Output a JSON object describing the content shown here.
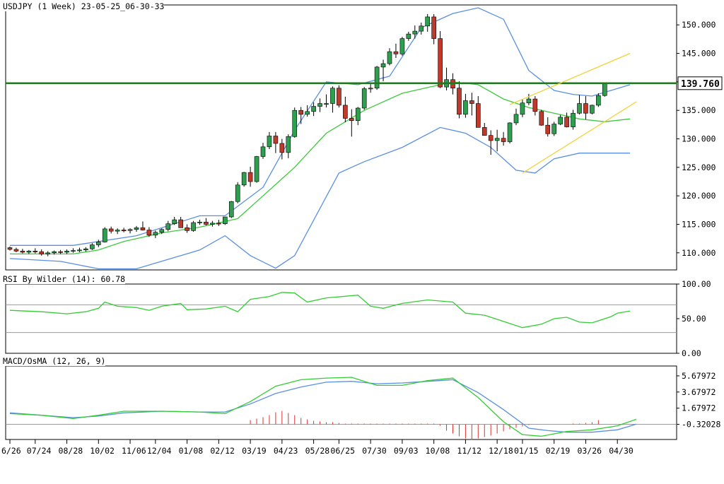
{
  "header": {
    "title": "USDJPY (1 Week) 23-05-25_06-30-33"
  },
  "colors": {
    "bull_candle": "#2e9e4f",
    "bear_candle": "#c0392b",
    "bollinger": "#5b8fe0",
    "ma": "#3ec83e",
    "channel": "#f1d23a",
    "resistance": "#1f7a1f",
    "rsi": "#33cc33",
    "macd_line": "#5b8fe0",
    "signal_line": "#33cc33",
    "osma": "#e03030",
    "grid": "#999999"
  },
  "chart_data": [
    {
      "type": "candlestick",
      "title": "USDJPY (1 Week) 23-05-25_06-30-33",
      "ylim": [
        107,
        153.5
      ],
      "y_ticks": [
        "150.000",
        "145.000",
        "140.000",
        "135.000",
        "130.000",
        "125.000",
        "120.000",
        "115.000",
        "110.000"
      ],
      "y_tick_values": [
        150,
        145,
        140,
        135,
        130,
        125,
        120,
        115,
        110
      ],
      "current_price": "139.760",
      "current_price_value": 139.76,
      "x_tick_labels": [
        "6/26",
        "07/24",
        "08/28",
        "10/02",
        "11/06",
        "12/04",
        "01/08",
        "02/12",
        "03/19",
        "04/23",
        "05/28",
        "06/25",
        "07/30",
        "09/03",
        "10/08",
        "11/12",
        "12/18",
        "01/15",
        "02/19",
        "03/26",
        "04/30"
      ],
      "x_tick_index": [
        0,
        4,
        9,
        14,
        19,
        23,
        28,
        33,
        38,
        43,
        48,
        52,
        57,
        62,
        67,
        72,
        77,
        81,
        86,
        91,
        96
      ],
      "ohlc": [
        [
          110.9,
          111.1,
          110.4,
          110.6
        ],
        [
          110.6,
          110.9,
          110.1,
          110.3
        ],
        [
          110.3,
          110.7,
          109.9,
          110.1
        ],
        [
          110.1,
          110.5,
          109.8,
          110.3
        ],
        [
          110.3,
          110.8,
          109.9,
          110.2
        ],
        [
          110.2,
          110.6,
          109.5,
          109.8
        ],
        [
          109.8,
          110.3,
          109.4,
          110.0
        ],
        [
          110.0,
          110.4,
          109.7,
          110.2
        ],
        [
          110.2,
          110.5,
          109.8,
          110.1
        ],
        [
          110.1,
          110.6,
          109.8,
          110.3
        ],
        [
          110.3,
          110.8,
          110.0,
          110.4
        ],
        [
          110.4,
          110.9,
          110.1,
          110.5
        ],
        [
          110.5,
          111.0,
          110.2,
          110.7
        ],
        [
          110.7,
          111.7,
          110.5,
          111.4
        ],
        [
          111.4,
          112.3,
          111.0,
          111.9
        ],
        [
          111.9,
          114.5,
          111.8,
          114.2
        ],
        [
          114.2,
          114.6,
          113.4,
          113.8
        ],
        [
          113.8,
          114.3,
          113.3,
          114.0
        ],
        [
          114.0,
          114.4,
          113.6,
          113.9
        ],
        [
          113.9,
          114.3,
          113.4,
          114.1
        ],
        [
          114.1,
          114.7,
          113.7,
          114.4
        ],
        [
          114.4,
          115.5,
          113.9,
          114.0
        ],
        [
          114.0,
          114.5,
          112.8,
          113.1
        ],
        [
          113.1,
          113.9,
          112.6,
          113.6
        ],
        [
          113.6,
          114.3,
          113.3,
          114.1
        ],
        [
          114.1,
          115.6,
          113.8,
          115.1
        ],
        [
          115.1,
          116.3,
          114.9,
          115.8
        ],
        [
          115.8,
          116.3,
          114.4,
          114.4
        ],
        [
          114.4,
          115.0,
          113.5,
          113.9
        ],
        [
          113.9,
          115.6,
          113.7,
          115.3
        ],
        [
          115.3,
          115.8,
          114.9,
          115.4
        ],
        [
          115.4,
          116.1,
          114.8,
          115.0
        ],
        [
          115.0,
          115.6,
          114.6,
          115.2
        ],
        [
          115.2,
          115.8,
          114.7,
          115.1
        ],
        [
          115.1,
          116.3,
          114.9,
          116.3
        ],
        [
          116.3,
          119.1,
          116.1,
          119.0
        ],
        [
          119.0,
          122.4,
          118.7,
          121.9
        ],
        [
          121.9,
          124.2,
          121.6,
          124.1
        ],
        [
          124.1,
          125.1,
          121.6,
          122.5
        ],
        [
          122.5,
          127.0,
          122.3,
          126.9
        ],
        [
          126.9,
          129.3,
          126.5,
          128.6
        ],
        [
          128.6,
          131.2,
          128.2,
          130.5
        ],
        [
          130.5,
          131.2,
          127.5,
          129.2
        ],
        [
          129.2,
          130.0,
          126.4,
          127.6
        ],
        [
          127.6,
          130.8,
          126.6,
          130.4
        ],
        [
          130.4,
          135.5,
          130.2,
          135.0
        ],
        [
          135.0,
          135.6,
          132.6,
          134.3
        ],
        [
          134.3,
          135.9,
          133.9,
          134.8
        ],
        [
          134.8,
          136.4,
          134.0,
          135.7
        ],
        [
          135.7,
          137.1,
          134.7,
          136.2
        ],
        [
          136.2,
          137.8,
          135.5,
          136.2
        ],
        [
          136.2,
          139.2,
          134.6,
          138.9
        ],
        [
          138.9,
          139.4,
          135.5,
          135.9
        ],
        [
          135.9,
          137.4,
          132.9,
          133.6
        ],
        [
          133.6,
          135.2,
          130.4,
          133.2
        ],
        [
          133.2,
          135.6,
          132.4,
          135.4
        ],
        [
          135.4,
          139.1,
          135.1,
          138.8
        ],
        [
          138.8,
          139.6,
          138.1,
          138.9
        ],
        [
          138.9,
          142.8,
          138.6,
          142.6
        ],
        [
          142.6,
          143.9,
          140.1,
          143.2
        ],
        [
          143.2,
          145.9,
          142.9,
          145.3
        ],
        [
          145.3,
          146.7,
          144.2,
          144.9
        ],
        [
          144.9,
          147.9,
          144.6,
          147.6
        ],
        [
          147.6,
          148.8,
          147.2,
          148.4
        ],
        [
          148.4,
          149.9,
          147.6,
          148.9
        ],
        [
          148.9,
          150.4,
          148.3,
          149.8
        ],
        [
          149.8,
          151.9,
          148.8,
          151.4
        ],
        [
          151.4,
          151.9,
          146.6,
          147.6
        ],
        [
          147.6,
          148.9,
          138.9,
          139.1
        ],
        [
          139.1,
          142.5,
          138.5,
          140.4
        ],
        [
          140.4,
          141.5,
          137.8,
          138.9
        ],
        [
          138.9,
          140.1,
          133.6,
          134.3
        ],
        [
          134.3,
          137.9,
          133.7,
          136.7
        ],
        [
          136.7,
          138.1,
          134.1,
          136.2
        ],
        [
          136.2,
          137.5,
          132.0,
          132.0
        ],
        [
          132.0,
          132.8,
          130.6,
          130.6
        ],
        [
          130.6,
          131.5,
          127.2,
          129.7
        ],
        [
          129.7,
          131.6,
          127.8,
          130.1
        ],
        [
          130.1,
          131.2,
          128.8,
          129.5
        ],
        [
          129.5,
          132.9,
          129.2,
          132.8
        ],
        [
          132.8,
          135.3,
          132.4,
          134.3
        ],
        [
          134.3,
          137.0,
          133.8,
          136.3
        ],
        [
          136.3,
          137.9,
          135.9,
          137.0
        ],
        [
          137.0,
          137.5,
          134.1,
          134.8
        ],
        [
          134.8,
          135.1,
          132.3,
          132.4
        ],
        [
          132.4,
          133.8,
          130.4,
          130.9
        ],
        [
          130.9,
          133.0,
          130.5,
          132.6
        ],
        [
          132.6,
          134.2,
          132.4,
          133.8
        ],
        [
          133.8,
          134.6,
          132.0,
          132.1
        ],
        [
          132.1,
          135.1,
          131.6,
          134.5
        ],
        [
          134.5,
          137.7,
          134.3,
          136.2
        ],
        [
          136.2,
          137.5,
          133.4,
          134.5
        ],
        [
          134.5,
          136.0,
          134.3,
          135.9
        ],
        [
          135.9,
          138.0,
          135.6,
          137.6
        ],
        [
          137.6,
          139.8,
          137.4,
          139.7
        ]
      ],
      "bollinger_upper_points": [
        [
          0,
          111.3
        ],
        [
          10,
          111.3
        ],
        [
          20,
          113.0
        ],
        [
          30,
          116.5
        ],
        [
          34,
          116.5
        ],
        [
          40,
          121.5
        ],
        [
          45,
          131.5
        ],
        [
          50,
          140.0
        ],
        [
          55,
          139.5
        ],
        [
          60,
          141.0
        ],
        [
          65,
          149.5
        ],
        [
          70,
          152.0
        ],
        [
          74,
          153.0
        ],
        [
          78,
          151.0
        ],
        [
          82,
          142.0
        ],
        [
          86,
          138.5
        ],
        [
          89,
          137.8
        ],
        [
          92,
          137.5
        ],
        [
          95,
          138.5
        ],
        [
          98,
          139.5
        ]
      ],
      "bollinger_lower_points": [
        [
          0,
          109.0
        ],
        [
          8,
          108.5
        ],
        [
          14,
          107.2
        ],
        [
          20,
          107.2
        ],
        [
          30,
          110.5
        ],
        [
          34,
          113.0
        ],
        [
          38,
          109.5
        ],
        [
          42,
          107.3
        ],
        [
          45,
          109.5
        ],
        [
          52,
          124.0
        ],
        [
          56,
          126.0
        ],
        [
          62,
          128.5
        ],
        [
          68,
          132.0
        ],
        [
          72,
          131.0
        ],
        [
          76,
          128.5
        ],
        [
          80,
          124.5
        ],
        [
          83,
          124.0
        ],
        [
          86,
          126.5
        ],
        [
          90,
          127.5
        ],
        [
          94,
          127.5
        ],
        [
          98,
          127.5
        ]
      ],
      "moving_average_points": [
        [
          0,
          109.8
        ],
        [
          10,
          109.8
        ],
        [
          14,
          110.5
        ],
        [
          18,
          112.0
        ],
        [
          24,
          113.5
        ],
        [
          30,
          114.5
        ],
        [
          36,
          116.0
        ],
        [
          40,
          120.0
        ],
        [
          45,
          125.0
        ],
        [
          50,
          131.0
        ],
        [
          56,
          135.0
        ],
        [
          62,
          138.0
        ],
        [
          66,
          139.0
        ],
        [
          70,
          140.0
        ],
        [
          74,
          139.5
        ],
        [
          78,
          137.0
        ],
        [
          82,
          135.5
        ],
        [
          86,
          134.5
        ],
        [
          90,
          133.5
        ],
        [
          94,
          133.0
        ],
        [
          98,
          133.5
        ]
      ],
      "resistance_level": 139.76,
      "channel_upper": [
        [
          79,
          136.0
        ],
        [
          98,
          145.0
        ]
      ],
      "channel_lower": [
        [
          81,
          124.0
        ],
        [
          99,
          136.5
        ]
      ]
    },
    {
      "type": "line",
      "title": "RSI By Wilder (14): 60.78",
      "ylim": [
        0,
        100
      ],
      "y_ticks": [
        "100.00",
        "50.00",
        "0.00"
      ],
      "y_tick_values": [
        100,
        50,
        0
      ],
      "levels": [
        70,
        30
      ],
      "rsi_points": [
        [
          0,
          62
        ],
        [
          5,
          60
        ],
        [
          9,
          57
        ],
        [
          12,
          60
        ],
        [
          14,
          65
        ],
        [
          15,
          74
        ],
        [
          17,
          68
        ],
        [
          20,
          66
        ],
        [
          22,
          62
        ],
        [
          24,
          68
        ],
        [
          27,
          72
        ],
        [
          28,
          63
        ],
        [
          31,
          64
        ],
        [
          34,
          68
        ],
        [
          36,
          60
        ],
        [
          38,
          78
        ],
        [
          41,
          82
        ],
        [
          43,
          88
        ],
        [
          45,
          87
        ],
        [
          47,
          74
        ],
        [
          50,
          80
        ],
        [
          55,
          84
        ],
        [
          57,
          68
        ],
        [
          59,
          65
        ],
        [
          62,
          72
        ],
        [
          66,
          77
        ],
        [
          70,
          74
        ],
        [
          72,
          58
        ],
        [
          75,
          55
        ],
        [
          78,
          46
        ],
        [
          81,
          37
        ],
        [
          84,
          42
        ],
        [
          86,
          50
        ],
        [
          88,
          52
        ],
        [
          90,
          45
        ],
        [
          92,
          44
        ],
        [
          95,
          53
        ],
        [
          96,
          58
        ],
        [
          98,
          61
        ]
      ]
    },
    {
      "type": "line",
      "title": "MACD/OsMA (12, 26, 9)",
      "ylim": [
        -2.2,
        6.9
      ],
      "y_ticks": [
        "5.67972",
        "3.67972",
        "1.67972",
        "-0.32028"
      ],
      "y_tick_values": [
        5.67972,
        3.67972,
        1.67972,
        -0.32028
      ],
      "macd_points": [
        [
          0,
          1.1
        ],
        [
          5,
          0.8
        ],
        [
          10,
          0.5
        ],
        [
          14,
          0.7
        ],
        [
          18,
          1.1
        ],
        [
          24,
          1.3
        ],
        [
          30,
          1.2
        ],
        [
          34,
          1.2
        ],
        [
          38,
          2.2
        ],
        [
          42,
          3.5
        ],
        [
          46,
          4.3
        ],
        [
          50,
          4.9
        ],
        [
          54,
          5.0
        ],
        [
          58,
          4.7
        ],
        [
          62,
          4.8
        ],
        [
          66,
          5.0
        ],
        [
          70,
          5.2
        ],
        [
          74,
          3.6
        ],
        [
          78,
          1.5
        ],
        [
          82,
          -0.8
        ],
        [
          85,
          -1.1
        ],
        [
          88,
          -1.3
        ],
        [
          92,
          -1.3
        ],
        [
          96,
          -1.0
        ],
        [
          99,
          -0.3
        ]
      ],
      "signal_points": [
        [
          0,
          1.0
        ],
        [
          5,
          0.8
        ],
        [
          10,
          0.4
        ],
        [
          14,
          0.8
        ],
        [
          18,
          1.3
        ],
        [
          24,
          1.3
        ],
        [
          30,
          1.2
        ],
        [
          34,
          1.0
        ],
        [
          38,
          2.5
        ],
        [
          42,
          4.4
        ],
        [
          46,
          5.2
        ],
        [
          50,
          5.4
        ],
        [
          54,
          5.5
        ],
        [
          58,
          4.5
        ],
        [
          62,
          4.5
        ],
        [
          66,
          5.1
        ],
        [
          70,
          5.4
        ],
        [
          74,
          3.0
        ],
        [
          78,
          0.0
        ],
        [
          81,
          -1.6
        ],
        [
          84,
          -1.8
        ],
        [
          88,
          -1.2
        ],
        [
          92,
          -1.0
        ],
        [
          96,
          -0.5
        ],
        [
          99,
          0.3
        ]
      ],
      "osma_values": [
        0,
        0,
        0,
        0,
        0,
        0,
        0,
        0,
        0,
        0,
        0,
        0,
        0,
        0,
        0,
        0,
        0,
        0,
        0,
        0,
        0,
        0,
        0,
        0,
        0,
        0,
        0,
        0,
        0,
        0,
        0,
        0,
        0,
        0,
        0,
        0,
        0,
        0,
        0.6,
        0.8,
        1.0,
        1.3,
        1.7,
        1.9,
        1.6,
        1.3,
        0.9,
        0.7,
        0.5,
        0.4,
        0.3,
        0.3,
        0.2,
        0.1,
        0.1,
        0.1,
        0.1,
        0.1,
        0.1,
        0.1,
        0.1,
        0.1,
        0.1,
        0.1,
        0.1,
        0.1,
        0.1,
        0.1,
        -0.2,
        -0.9,
        -1.3,
        -1.7,
        -2.0,
        -2.2,
        -2.0,
        -1.8,
        -1.6,
        -1.3,
        -1.0,
        -0.7,
        -0.5,
        -0.3,
        -0.1,
        0.0,
        0.0,
        0.0,
        0.0,
        0.0,
        0.0,
        0.1,
        0.1,
        0.2,
        0.3,
        0.6
      ]
    }
  ]
}
